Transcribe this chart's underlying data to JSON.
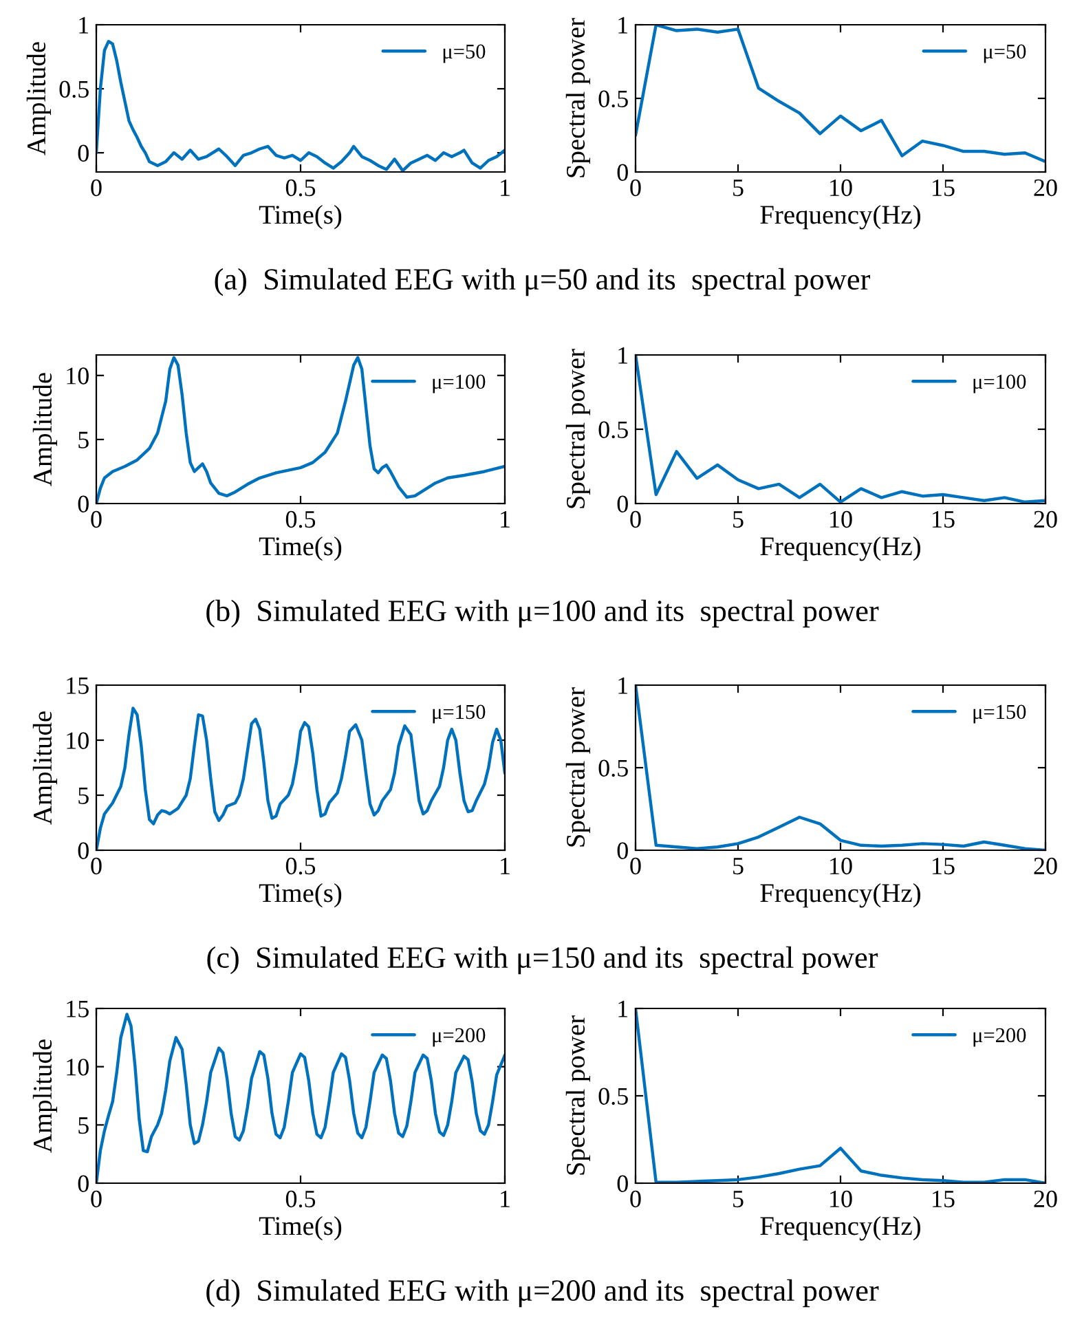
{
  "chart_data": [
    {
      "type": "line",
      "xlabel": "Time(s)",
      "ylabel": "Amplitude",
      "xlim": [
        0,
        1
      ],
      "ylim": [
        -0.15,
        1
      ],
      "xticks": [
        0,
        0.5,
        1
      ],
      "yticks": [
        0,
        0.5,
        1
      ],
      "legend": "top right",
      "annotations": [
        "(a)  Simulated EEG with μ=50 and its  spectral power"
      ],
      "series": [
        {
          "name": "μ=50",
          "color": "#0072bd",
          "x": [
            0,
            0.01,
            0.02,
            0.03,
            0.04,
            0.05,
            0.06,
            0.07,
            0.08,
            0.09,
            0.1,
            0.11,
            0.12,
            0.13,
            0.15,
            0.17,
            0.19,
            0.21,
            0.23,
            0.25,
            0.27,
            0.3,
            0.32,
            0.34,
            0.36,
            0.38,
            0.4,
            0.42,
            0.44,
            0.46,
            0.48,
            0.5,
            0.52,
            0.54,
            0.56,
            0.58,
            0.6,
            0.62,
            0.63,
            0.65,
            0.67,
            0.69,
            0.71,
            0.73,
            0.75,
            0.77,
            0.79,
            0.81,
            0.83,
            0.85,
            0.87,
            0.89,
            0.9,
            0.92,
            0.94,
            0.96,
            0.98,
            1.0
          ],
          "values": [
            0,
            0.5,
            0.8,
            0.87,
            0.85,
            0.72,
            0.55,
            0.4,
            0.25,
            0.18,
            0.12,
            0.05,
            0.0,
            -0.07,
            -0.1,
            -0.07,
            0.0,
            -0.05,
            0.02,
            -0.05,
            -0.03,
            0.03,
            -0.03,
            -0.1,
            -0.02,
            0.0,
            0.03,
            0.05,
            -0.02,
            -0.04,
            -0.02,
            -0.06,
            0.0,
            -0.03,
            -0.08,
            -0.12,
            -0.07,
            0.0,
            0.05,
            -0.03,
            -0.06,
            -0.1,
            -0.13,
            -0.05,
            -0.14,
            -0.08,
            -0.05,
            -0.02,
            -0.06,
            0.0,
            -0.03,
            0.0,
            0.02,
            -0.08,
            -0.12,
            -0.06,
            -0.03,
            0.02
          ]
        }
      ]
    },
    {
      "type": "line",
      "xlabel": "Frequency(Hz)",
      "ylabel": "Spectral power",
      "xlim": [
        0,
        20
      ],
      "ylim": [
        0,
        1
      ],
      "xticks": [
        0,
        5,
        10,
        15,
        20
      ],
      "yticks": [
        0,
        0.5,
        1
      ],
      "legend": "top right",
      "series": [
        {
          "name": "μ=50",
          "color": "#0072bd",
          "x": [
            0,
            1,
            2,
            3,
            4,
            5,
            6,
            7,
            8,
            9,
            10,
            11,
            12,
            13,
            14,
            15,
            16,
            17,
            18,
            19,
            20
          ],
          "values": [
            0.25,
            1.0,
            0.96,
            0.97,
            0.95,
            0.97,
            0.57,
            0.48,
            0.4,
            0.26,
            0.38,
            0.28,
            0.35,
            0.11,
            0.21,
            0.18,
            0.14,
            0.14,
            0.12,
            0.13,
            0.07
          ]
        }
      ]
    },
    {
      "type": "line",
      "xlabel": "Time(s)",
      "ylabel": "Amplitude",
      "xlim": [
        0,
        1
      ],
      "ylim": [
        0,
        11.6
      ],
      "xticks": [
        0,
        0.5,
        1
      ],
      "yticks": [
        0,
        5,
        10
      ],
      "legend": "top right",
      "annotations": [
        "(b)  Simulated EEG with μ=100 and its  spectral power"
      ],
      "series": [
        {
          "name": "μ=100",
          "color": "#0072bd",
          "x": [
            0,
            0.01,
            0.02,
            0.04,
            0.07,
            0.1,
            0.13,
            0.15,
            0.17,
            0.18,
            0.19,
            0.2,
            0.21,
            0.22,
            0.23,
            0.24,
            0.25,
            0.26,
            0.27,
            0.28,
            0.3,
            0.32,
            0.34,
            0.37,
            0.4,
            0.44,
            0.47,
            0.5,
            0.53,
            0.56,
            0.59,
            0.61,
            0.63,
            0.64,
            0.65,
            0.66,
            0.67,
            0.68,
            0.69,
            0.7,
            0.71,
            0.72,
            0.74,
            0.76,
            0.78,
            0.8,
            0.83,
            0.86,
            0.9,
            0.95,
            1.0
          ],
          "values": [
            0,
            1.2,
            2.0,
            2.5,
            2.9,
            3.4,
            4.3,
            5.5,
            8.0,
            10.5,
            11.4,
            10.8,
            8.5,
            5.5,
            3.2,
            2.5,
            2.8,
            3.1,
            2.5,
            1.6,
            0.8,
            0.6,
            0.9,
            1.5,
            2.0,
            2.4,
            2.6,
            2.8,
            3.2,
            4.0,
            5.5,
            8.0,
            10.8,
            11.4,
            10.5,
            7.5,
            4.5,
            2.7,
            2.4,
            2.8,
            3.0,
            2.5,
            1.3,
            0.5,
            0.6,
            1.0,
            1.6,
            2.0,
            2.2,
            2.5,
            2.9
          ]
        }
      ]
    },
    {
      "type": "line",
      "xlabel": "Frequency(Hz)",
      "ylabel": "Spectral power",
      "xlim": [
        0,
        20
      ],
      "ylim": [
        0,
        1
      ],
      "xticks": [
        0,
        5,
        10,
        15,
        20
      ],
      "yticks": [
        0,
        0.5,
        1
      ],
      "legend": "top right",
      "series": [
        {
          "name": "μ=100",
          "color": "#0072bd",
          "x": [
            0,
            1,
            2,
            3,
            4,
            5,
            6,
            7,
            8,
            9,
            10,
            11,
            12,
            13,
            14,
            15,
            16,
            17,
            18,
            19,
            20
          ],
          "values": [
            1.0,
            0.06,
            0.35,
            0.17,
            0.26,
            0.16,
            0.1,
            0.13,
            0.04,
            0.13,
            0.01,
            0.1,
            0.04,
            0.08,
            0.05,
            0.06,
            0.04,
            0.02,
            0.04,
            0.01,
            0.02
          ]
        }
      ]
    },
    {
      "type": "line",
      "xlabel": "Time(s)",
      "ylabel": "Amplitude",
      "xlim": [
        0,
        1
      ],
      "ylim": [
        0,
        15
      ],
      "xticks": [
        0,
        0.5,
        1
      ],
      "yticks": [
        0,
        5,
        10,
        15
      ],
      "legend": "top right",
      "annotations": [
        "(c)  Simulated EEG with μ=150 and its  spectral power"
      ],
      "series": [
        {
          "name": "μ=150",
          "color": "#0072bd",
          "x": [
            0,
            0.01,
            0.02,
            0.04,
            0.06,
            0.07,
            0.08,
            0.09,
            0.1,
            0.11,
            0.12,
            0.13,
            0.14,
            0.15,
            0.16,
            0.17,
            0.18,
            0.2,
            0.22,
            0.23,
            0.24,
            0.25,
            0.26,
            0.27,
            0.28,
            0.29,
            0.3,
            0.31,
            0.32,
            0.34,
            0.35,
            0.36,
            0.37,
            0.38,
            0.39,
            0.4,
            0.41,
            0.42,
            0.43,
            0.44,
            0.45,
            0.47,
            0.48,
            0.49,
            0.5,
            0.51,
            0.52,
            0.53,
            0.54,
            0.55,
            0.56,
            0.57,
            0.59,
            0.6,
            0.61,
            0.62,
            0.635,
            0.65,
            0.66,
            0.67,
            0.68,
            0.69,
            0.7,
            0.72,
            0.73,
            0.74,
            0.755,
            0.77,
            0.78,
            0.79,
            0.8,
            0.81,
            0.82,
            0.84,
            0.85,
            0.86,
            0.87,
            0.88,
            0.89,
            0.9,
            0.91,
            0.92,
            0.93,
            0.95,
            0.96,
            0.97,
            0.98,
            0.99,
            1.0
          ],
          "values": [
            0,
            2.0,
            3.3,
            4.3,
            5.8,
            7.5,
            10.5,
            12.9,
            12.3,
            9.5,
            5.5,
            2.8,
            2.4,
            3.2,
            3.6,
            3.5,
            3.3,
            3.8,
            5.0,
            6.5,
            9.5,
            12.3,
            12.2,
            10.0,
            6.5,
            3.5,
            2.7,
            3.2,
            4.0,
            4.3,
            5.0,
            6.5,
            9.0,
            11.5,
            11.9,
            11.0,
            8.0,
            4.5,
            2.9,
            3.1,
            4.2,
            5.0,
            6.0,
            8.0,
            10.8,
            11.6,
            11.2,
            8.8,
            5.5,
            3.1,
            3.3,
            4.3,
            5.2,
            6.5,
            8.5,
            10.8,
            11.4,
            10.0,
            7.0,
            4.2,
            3.2,
            3.6,
            4.5,
            5.5,
            7.0,
            9.5,
            11.3,
            10.5,
            7.5,
            4.5,
            3.3,
            3.6,
            4.5,
            5.8,
            7.5,
            10.0,
            11.0,
            10.0,
            7.0,
            4.5,
            3.5,
            3.6,
            4.5,
            6.0,
            7.5,
            9.8,
            11.0,
            10.0,
            7.0
          ]
        }
      ]
    },
    {
      "type": "line",
      "xlabel": "Frequency(Hz)",
      "ylabel": "Spectral power",
      "xlim": [
        0,
        20
      ],
      "ylim": [
        0,
        1
      ],
      "xticks": [
        0,
        5,
        10,
        15,
        20
      ],
      "yticks": [
        0,
        0.5,
        1
      ],
      "legend": "top right",
      "series": [
        {
          "name": "μ=150",
          "color": "#0072bd",
          "x": [
            0,
            1,
            2,
            3,
            4,
            5,
            6,
            7,
            8,
            9,
            10,
            11,
            12,
            13,
            14,
            15,
            16,
            17,
            18,
            19,
            20
          ],
          "values": [
            1.0,
            0.03,
            0.02,
            0.01,
            0.02,
            0.04,
            0.08,
            0.14,
            0.2,
            0.16,
            0.06,
            0.03,
            0.025,
            0.03,
            0.04,
            0.035,
            0.025,
            0.05,
            0.03,
            0.01,
            0.0
          ]
        }
      ]
    },
    {
      "type": "line",
      "xlabel": "Time(s)",
      "ylabel": "Amplitude",
      "xlim": [
        0,
        1
      ],
      "ylim": [
        0,
        15
      ],
      "xticks": [
        0,
        0.5,
        1
      ],
      "yticks": [
        0,
        5,
        10,
        15
      ],
      "legend": "top right",
      "annotations": [
        "(d)  Simulated EEG with μ=200 and its  spectral power"
      ],
      "series": [
        {
          "name": "μ=200",
          "color": "#0072bd",
          "x": [
            0,
            0.01,
            0.02,
            0.03,
            0.04,
            0.05,
            0.06,
            0.075,
            0.085,
            0.095,
            0.105,
            0.115,
            0.125,
            0.135,
            0.15,
            0.16,
            0.17,
            0.18,
            0.195,
            0.21,
            0.22,
            0.23,
            0.24,
            0.25,
            0.26,
            0.27,
            0.28,
            0.3,
            0.31,
            0.32,
            0.33,
            0.34,
            0.35,
            0.36,
            0.37,
            0.38,
            0.4,
            0.41,
            0.42,
            0.43,
            0.44,
            0.45,
            0.46,
            0.47,
            0.48,
            0.5,
            0.51,
            0.52,
            0.53,
            0.54,
            0.55,
            0.56,
            0.57,
            0.58,
            0.6,
            0.61,
            0.62,
            0.63,
            0.64,
            0.65,
            0.66,
            0.67,
            0.68,
            0.7,
            0.71,
            0.72,
            0.73,
            0.74,
            0.75,
            0.76,
            0.77,
            0.78,
            0.8,
            0.81,
            0.82,
            0.83,
            0.84,
            0.85,
            0.86,
            0.87,
            0.88,
            0.9,
            0.91,
            0.92,
            0.93,
            0.94,
            0.95,
            0.96,
            0.97,
            0.98,
            1.0
          ],
          "values": [
            0,
            2.8,
            4.5,
            5.8,
            7.0,
            9.5,
            12.5,
            14.5,
            13.5,
            10.0,
            5.5,
            2.8,
            2.7,
            4.0,
            5.0,
            6.0,
            8.0,
            10.5,
            12.5,
            11.5,
            8.5,
            5.0,
            3.4,
            3.6,
            5.0,
            7.0,
            9.5,
            11.6,
            11.2,
            9.0,
            6.0,
            4.0,
            3.7,
            4.5,
            6.5,
            9.0,
            11.3,
            11.0,
            9.0,
            6.0,
            4.2,
            3.9,
            4.8,
            7.0,
            9.5,
            11.1,
            10.8,
            8.8,
            6.0,
            4.2,
            3.9,
            4.8,
            7.0,
            9.5,
            11.1,
            10.8,
            8.8,
            6.0,
            4.3,
            3.9,
            4.8,
            7.0,
            9.5,
            11.0,
            10.7,
            8.8,
            6.0,
            4.3,
            4.0,
            4.9,
            7.0,
            9.5,
            11.0,
            10.7,
            8.8,
            6.0,
            4.4,
            4.1,
            5.0,
            7.0,
            9.5,
            10.9,
            10.6,
            8.7,
            6.0,
            4.5,
            4.2,
            5.0,
            7.0,
            9.3,
            11.0
          ]
        }
      ]
    },
    {
      "type": "line",
      "xlabel": "Frequency(Hz)",
      "ylabel": "Spectral power",
      "xlim": [
        0,
        20
      ],
      "ylim": [
        0,
        1
      ],
      "xticks": [
        0,
        5,
        10,
        15,
        20
      ],
      "yticks": [
        0,
        0.5,
        1
      ],
      "legend": "top right",
      "series": [
        {
          "name": "μ=200",
          "color": "#0072bd",
          "x": [
            0,
            1,
            2,
            3,
            4,
            5,
            6,
            7,
            8,
            9,
            10,
            11,
            12,
            13,
            14,
            15,
            16,
            17,
            18,
            19,
            20
          ],
          "values": [
            1.0,
            0.005,
            0.005,
            0.01,
            0.015,
            0.02,
            0.035,
            0.055,
            0.08,
            0.1,
            0.2,
            0.07,
            0.045,
            0.03,
            0.02,
            0.015,
            0.005,
            0.005,
            0.02,
            0.02,
            0.0
          ]
        }
      ]
    }
  ]
}
